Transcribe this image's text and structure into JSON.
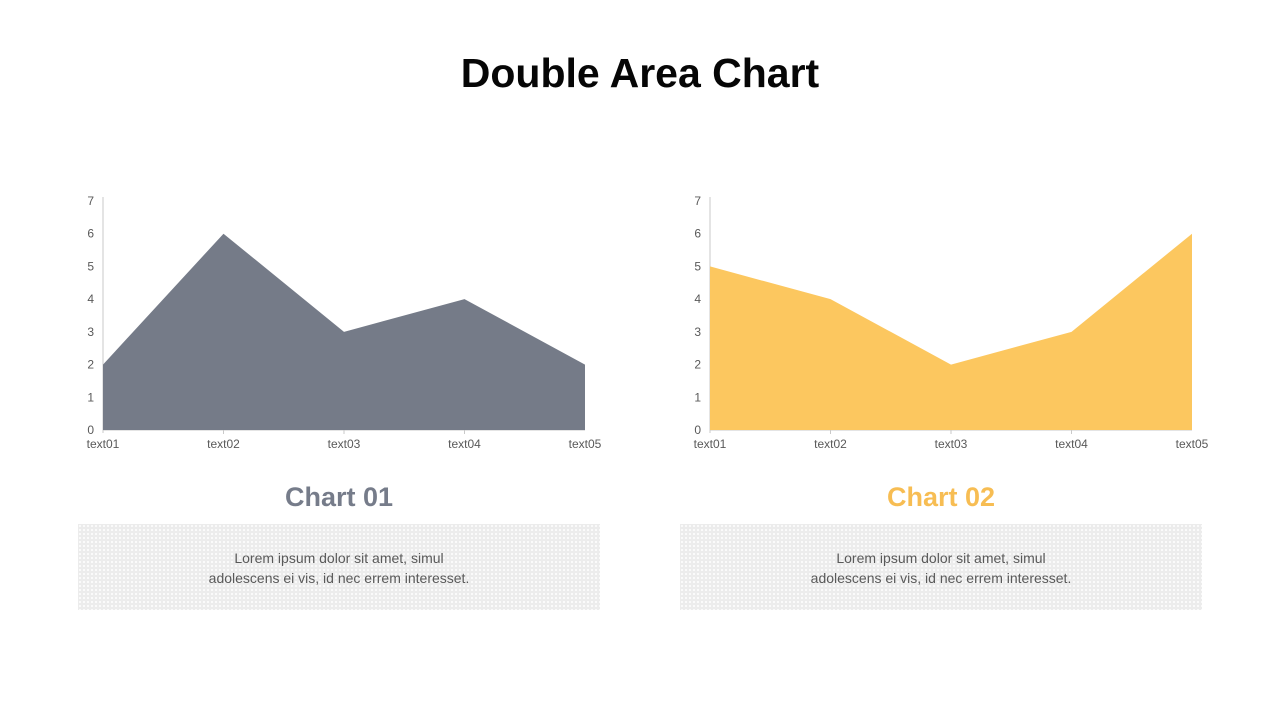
{
  "page": {
    "title": "Double Area Chart"
  },
  "panels": [
    {
      "label": "Chart 01",
      "label_color": "#767C8A",
      "description": "Lorem ipsum dolor sit amet, simul\nadolescens ei vis, id nec errem interesset."
    },
    {
      "label": "Chart 02",
      "label_color": "#F7BD53",
      "description": "Lorem ipsum dolor sit amet, simul\nadolescens ei vis, id nec errem interesset."
    }
  ],
  "chart_data": [
    {
      "type": "area",
      "title": "Chart 01",
      "categories": [
        "text01",
        "text02",
        "text03",
        "text04",
        "text05"
      ],
      "values": [
        2,
        6,
        3,
        4,
        2
      ],
      "color": "#757B88",
      "ylim": [
        0,
        7
      ],
      "yticks": [
        0,
        1,
        2,
        3,
        4,
        5,
        6,
        7
      ],
      "axis_color": "#C9C9C9",
      "tick_label_color": "#595959",
      "xlabel": "",
      "ylabel": "",
      "grid": false,
      "legend": false
    },
    {
      "type": "area",
      "title": "Chart 02",
      "categories": [
        "text01",
        "text02",
        "text03",
        "text04",
        "text05"
      ],
      "values": [
        5,
        4,
        2,
        3,
        6
      ],
      "color": "#FCC75F",
      "ylim": [
        0,
        7
      ],
      "yticks": [
        0,
        1,
        2,
        3,
        4,
        5,
        6,
        7
      ],
      "axis_color": "#C9C9C9",
      "tick_label_color": "#595959",
      "xlabel": "",
      "ylabel": "",
      "grid": false,
      "legend": false
    }
  ]
}
